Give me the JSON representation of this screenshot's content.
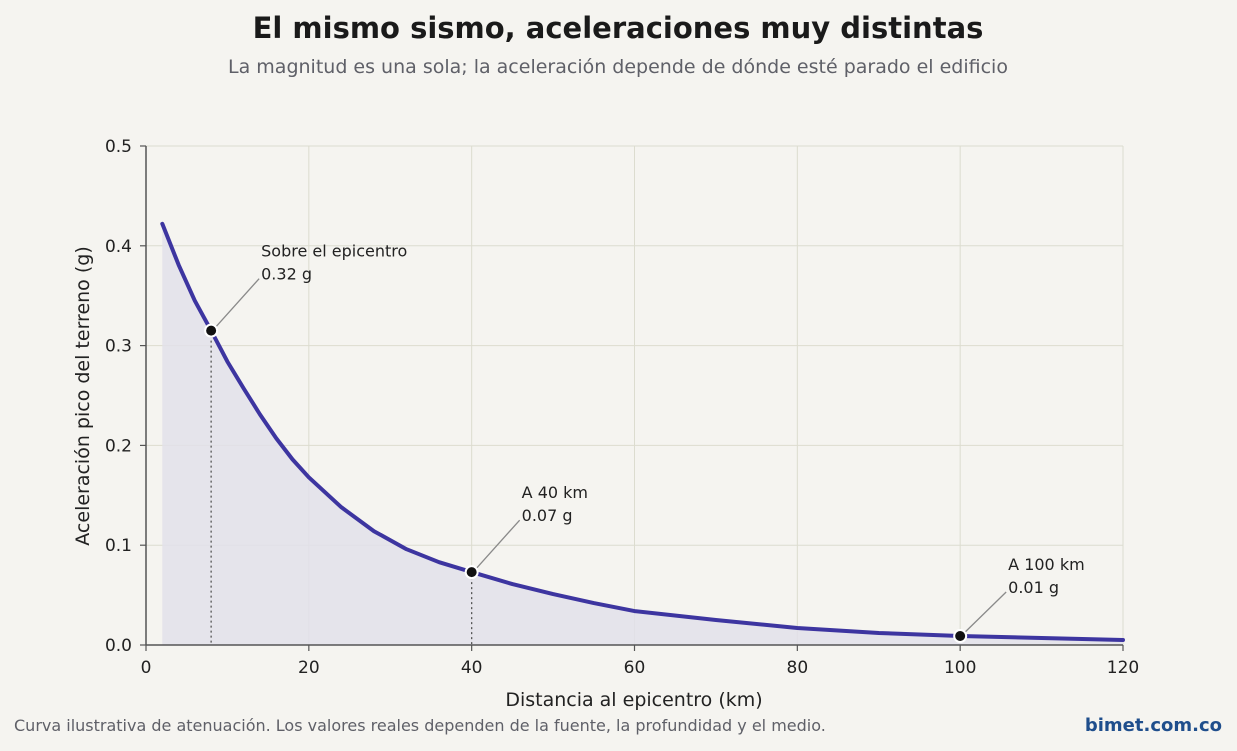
{
  "header": {
    "title": "El mismo sismo, aceleraciones muy distintas",
    "subtitle": "La magnitud es una sola; la aceleración depende de dónde esté parado el edificio"
  },
  "footer": {
    "note": "Curva ilustrativa de atenuación. Los valores reales dependen de la fuente, la profundidad y el medio.",
    "brand": "bimet.com.co"
  },
  "colors": {
    "curve": "#3d35a0",
    "fill": "#e2e0ea",
    "point": "#111111",
    "leader": "#8a8a8a"
  },
  "chart_data": {
    "type": "area",
    "xlabel": "Distancia al epicentro (km)",
    "ylabel": "Aceleración pico del terreno (g)",
    "xlim": [
      0,
      120
    ],
    "ylim": [
      0,
      0.5
    ],
    "xticks": [
      0,
      20,
      40,
      60,
      80,
      100,
      120
    ],
    "yticks": [
      0.0,
      0.1,
      0.2,
      0.3,
      0.4,
      0.5
    ],
    "grid": true,
    "series": [
      {
        "x": [
          2,
          4,
          6,
          8,
          10,
          12,
          14,
          16,
          18,
          20,
          24,
          28,
          32,
          36,
          40,
          45,
          50,
          55,
          60,
          70,
          80,
          90,
          100,
          110,
          120
        ],
        "y": [
          0.422,
          0.381,
          0.345,
          0.315,
          0.284,
          0.257,
          0.231,
          0.207,
          0.186,
          0.168,
          0.138,
          0.114,
          0.096,
          0.083,
          0.073,
          0.061,
          0.051,
          0.042,
          0.034,
          0.025,
          0.017,
          0.012,
          0.009,
          0.007,
          0.005
        ]
      }
    ],
    "annotations": [
      {
        "x": 8,
        "y": 0.315,
        "line1": "Sobre el epicentro",
        "line2": "0.32 g",
        "dropline": true
      },
      {
        "x": 40,
        "y": 0.073,
        "line1": "A 40 km",
        "line2": "0.07 g",
        "dropline": true
      },
      {
        "x": 100,
        "y": 0.009,
        "line1": "A 100 km",
        "line2": "0.01 g",
        "dropline": false
      }
    ]
  }
}
